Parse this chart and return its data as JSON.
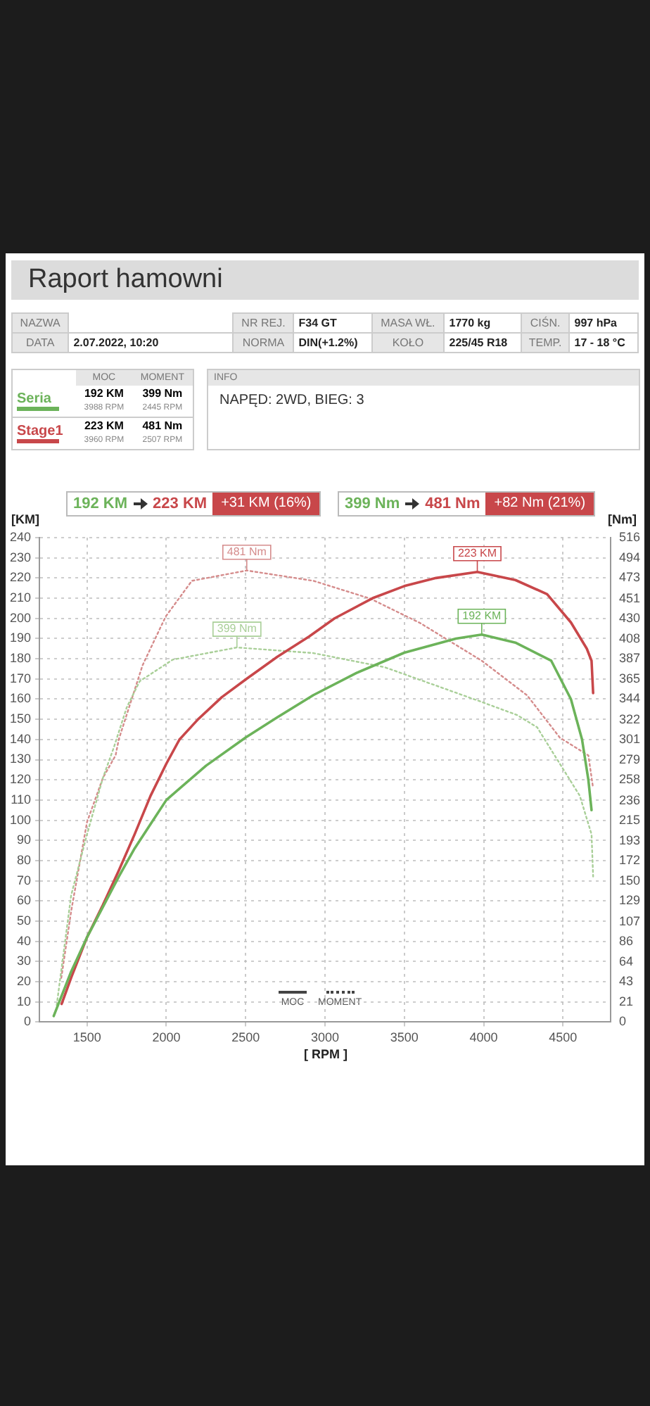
{
  "chart_data": {
    "type": "line",
    "title": "Raport hamowni",
    "xlabel": "[ RPM ]",
    "ylabel": "[KM]",
    "y2label": "[Nm]",
    "xlim": [
      1200,
      4800
    ],
    "xticks": [
      1500,
      2000,
      2500,
      3000,
      3500,
      4000,
      4500
    ],
    "ylim": [
      0,
      240
    ],
    "yticks": [
      0,
      10,
      20,
      30,
      40,
      50,
      60,
      70,
      80,
      90,
      100,
      110,
      120,
      130,
      140,
      150,
      160,
      170,
      180,
      190,
      200,
      210,
      220,
      230,
      240
    ],
    "y2lim": [
      0,
      516
    ],
    "y2ticks": [
      0,
      21,
      43,
      64,
      86,
      107,
      129,
      150,
      172,
      193,
      215,
      236,
      258,
      279,
      301,
      322,
      344,
      365,
      387,
      408,
      430,
      451,
      473,
      494,
      516
    ],
    "grid": true,
    "legend": "top left",
    "marker": "none",
    "annotations": [
      "NAZWA",
      "NR REJ.",
      "F34 GT",
      "MASA WŁ.",
      "1770 kg",
      "CIŚN.",
      "997 hPa",
      "DATA",
      "2.07.2022, 10:20",
      "NORMA",
      "DIN(+1.2%)",
      "KOŁO",
      "225/45 R18",
      "TEMP.",
      "17 - 18 °C",
      "MOC",
      "MOMENT",
      "192 KM",
      "399 Nm",
      "3988 RPM",
      "2445 RPM",
      "223 KM",
      "481 Nm",
      "3960 RPM",
      "2507 RPM",
      "INFO",
      "NAPĘD: 2WD,  BIEG: 3",
      "192 KM",
      "223 KM",
      "+31 KM (16%)",
      "399 Nm",
      "481 Nm",
      "+82 Nm (21%)",
      "MOC",
      "MOMENT"
    ],
    "series": [
      {
        "name": "Seria",
        "color": "#6cb35a",
        "axis": "y",
        "line_style": "solid",
        "x": [
          1290,
          1350,
          1400,
          1500,
          1600,
          1700,
          1800,
          1900,
          2000,
          2250,
          2500,
          2700,
          2927,
          3200,
          3500,
          3825,
          3988,
          4200,
          4426,
          4550,
          4620,
          4660,
          4680
        ],
        "values": [
          3,
          15,
          25,
          42,
          57,
          72,
          86,
          98,
          110,
          127,
          141,
          151,
          162,
          173,
          183,
          190,
          192,
          188,
          179,
          160,
          140,
          120,
          105
        ],
        "value_labels": [
          null,
          null,
          null,
          null,
          null,
          null,
          null,
          null,
          null,
          null,
          null,
          null,
          null,
          null,
          null,
          null,
          "192 KM",
          null,
          null,
          null,
          null,
          null,
          null
        ]
      },
      {
        "name": "Stage1",
        "color": "#c8474a",
        "axis": "y",
        "line_style": "solid",
        "x": [
          1340,
          1400,
          1500,
          1600,
          1700,
          1800,
          1900,
          2000,
          2083,
          2200,
          2350,
          2505,
          2700,
          2900,
          3060,
          3300,
          3500,
          3700,
          3960,
          4200,
          4400,
          4550,
          4650,
          4680,
          4690
        ],
        "values": [
          9,
          22,
          42,
          58,
          75,
          93,
          112,
          128,
          140,
          150,
          161,
          170,
          181,
          191,
          200,
          210,
          216,
          220,
          223,
          219,
          212,
          198,
          185,
          179,
          163
        ],
        "value_labels": [
          null,
          null,
          null,
          null,
          null,
          null,
          null,
          null,
          null,
          null,
          null,
          null,
          null,
          null,
          null,
          null,
          null,
          null,
          "223 KM",
          null,
          null,
          null,
          null,
          null,
          null
        ]
      },
      {
        "color": "#a9cf98",
        "axis": "y2",
        "line_style": "dotted",
        "x": [
          1309,
          1400,
          1500,
          1600,
          1668,
          1750,
          1832,
          2040,
          2445,
          2927,
          3376,
          3987,
          4211,
          4337,
          4606,
          4680,
          4690
        ],
        "values": [
          18,
          135,
          200,
          260,
          292,
          335,
          363,
          386,
          399,
          393,
          378,
          341,
          327,
          314,
          241,
          200,
          155
        ],
        "value_labels": [
          null,
          null,
          null,
          null,
          null,
          null,
          null,
          null,
          "399 Nm",
          null,
          null,
          null,
          null,
          null,
          null,
          null,
          null
        ]
      },
      {
        "color": "#d58c8c",
        "axis": "y2",
        "line_style": "dotted",
        "x": [
          1338,
          1400,
          1500,
          1600,
          1680,
          1700,
          1850,
          1996,
          2161,
          2507,
          2927,
          3286,
          3600,
          3987,
          4274,
          4480,
          4660,
          4690
        ],
        "values": [
          47,
          118,
          213,
          260,
          284,
          301,
          380,
          432,
          470,
          481,
          470,
          451,
          425,
          385,
          348,
          303,
          284,
          249
        ],
        "value_labels": [
          null,
          null,
          null,
          null,
          null,
          null,
          null,
          null,
          null,
          "481 Nm",
          null,
          null,
          null,
          null,
          null,
          null,
          null,
          null
        ]
      }
    ]
  }
}
